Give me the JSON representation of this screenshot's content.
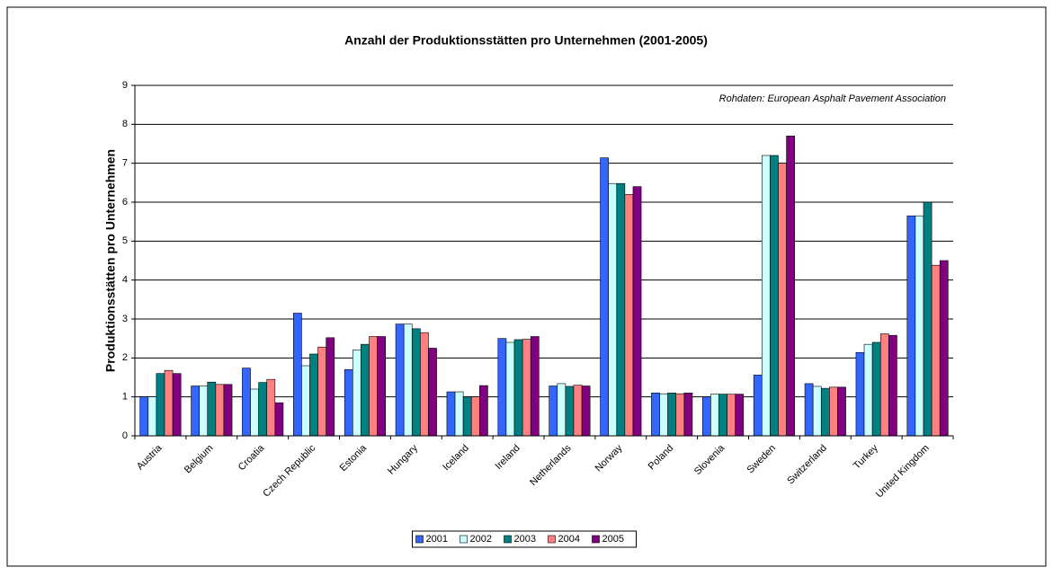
{
  "chart_data": {
    "type": "bar",
    "title": "Anzahl der Produktionsstätten pro Unternehmen (2001-2005)",
    "ylabel": "Produktionsstätten pro Unternehmen",
    "annotation": "Rohdaten: European Asphalt Pavement Association",
    "categories": [
      "Austria",
      "Belgium",
      "Croatia",
      "Czech Republic",
      "Estonia",
      "Hungary",
      "Iceland",
      "Ireland",
      "Netherlands",
      "Norway",
      "Poland",
      "Slovenia",
      "Sweden",
      "Switzerland",
      "Turkey",
      "United Kingdom"
    ],
    "series": [
      {
        "name": "2001",
        "color": "#3366ff",
        "values": [
          1.0,
          1.28,
          1.74,
          3.15,
          1.7,
          2.87,
          1.13,
          2.5,
          1.28,
          7.14,
          1.1,
          1.0,
          1.56,
          1.34,
          2.14,
          5.65
        ]
      },
      {
        "name": "2002",
        "color": "#ccffff",
        "values": [
          1.0,
          1.28,
          1.2,
          1.8,
          2.2,
          2.87,
          1.13,
          2.4,
          1.34,
          6.48,
          1.08,
          1.07,
          7.2,
          1.27,
          2.35,
          5.65
        ]
      },
      {
        "name": "2003",
        "color": "#008080",
        "values": [
          1.6,
          1.38,
          1.37,
          2.1,
          2.35,
          2.75,
          1.0,
          2.47,
          1.27,
          6.48,
          1.1,
          1.07,
          7.2,
          1.22,
          2.4,
          6.0
        ]
      },
      {
        "name": "2004",
        "color": "#ff8080",
        "values": [
          1.68,
          1.32,
          1.45,
          2.28,
          2.55,
          2.65,
          1.0,
          2.48,
          1.3,
          6.2,
          1.08,
          1.07,
          7.0,
          1.25,
          2.62,
          4.38
        ]
      },
      {
        "name": "2005",
        "color": "#800080",
        "values": [
          1.6,
          1.32,
          0.85,
          2.52,
          2.55,
          2.25,
          1.29,
          2.55,
          1.28,
          6.4,
          1.1,
          1.07,
          7.7,
          1.25,
          2.58,
          4.5
        ]
      }
    ],
    "ylim": [
      0,
      9
    ],
    "yticks": [
      0,
      1,
      2,
      3,
      4,
      5,
      6,
      7,
      8,
      9
    ],
    "grid": true,
    "legend": "bottom"
  }
}
